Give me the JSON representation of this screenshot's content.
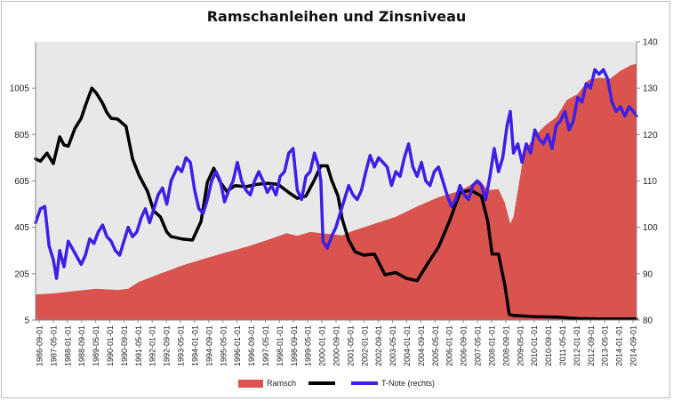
{
  "chart_data": {
    "type": "line",
    "title": "Ramschanleihen und Zinsniveau",
    "x_labels": [
      "1986-09-01",
      "1987-05-01",
      "1988-01-01",
      "1988-09-01",
      "1989-05-01",
      "1990-01-01",
      "1990-09-01",
      "1991-05-01",
      "1992-01-01",
      "1992-09-01",
      "1993-05-01",
      "1994-01-01",
      "1994-09-01",
      "1995-05-01",
      "1996-01-01",
      "1996-09-01",
      "1997-05-01",
      "1998-01-01",
      "1998-09-01",
      "1999-05-01",
      "2000-01-01",
      "2000-09-01",
      "2001-05-01",
      "2002-01-01",
      "2002-09-01",
      "2003-05-01",
      "2004-01-01",
      "2004-09-01",
      "2005-05-01",
      "2006-01-01",
      "2006-09-01",
      "2007-05-01",
      "2008-01-01",
      "2008-09-01",
      "2009-05-01",
      "2010-01-01",
      "2010-09-01",
      "2011-05-01",
      "2012-01-01",
      "2012-09-01",
      "2013-05-01",
      "2014-01-01",
      "2014-09-01"
    ],
    "y_left": {
      "ticks": [
        5,
        205,
        405,
        605,
        805,
        1005
      ],
      "range": [
        5,
        1205
      ]
    },
    "y_right": {
      "label": "",
      "ticks": [
        80,
        90,
        100,
        110,
        120,
        130,
        140
      ],
      "range": [
        80,
        140
      ]
    },
    "series": [
      {
        "name": "Ramsch",
        "type": "area",
        "axis": "left",
        "color": "#d9534f",
        "points": [
          [
            1986.67,
            115
          ],
          [
            1987.5,
            120
          ],
          [
            1988.5,
            130
          ],
          [
            1989.5,
            140
          ],
          [
            1990.5,
            135
          ],
          [
            1991.0,
            140
          ],
          [
            1991.5,
            170
          ],
          [
            1992.5,
            205
          ],
          [
            1993.5,
            240
          ],
          [
            1994.5,
            268
          ],
          [
            1995.5,
            295
          ],
          [
            1996.5,
            320
          ],
          [
            1997.5,
            350
          ],
          [
            1998.4,
            380
          ],
          [
            1998.9,
            368
          ],
          [
            1999.5,
            385
          ],
          [
            2000.5,
            375
          ],
          [
            2001.0,
            370
          ],
          [
            2001.5,
            390
          ],
          [
            2002.5,
            420
          ],
          [
            2003.5,
            450
          ],
          [
            2004.5,
            495
          ],
          [
            2005.5,
            535
          ],
          [
            2006.5,
            562
          ],
          [
            2007.4,
            610
          ],
          [
            2007.8,
            565
          ],
          [
            2008.3,
            570
          ],
          [
            2008.6,
            510
          ],
          [
            2008.85,
            420
          ],
          [
            2009.0,
            450
          ],
          [
            2009.5,
            730
          ],
          [
            2010.0,
            800
          ],
          [
            2010.5,
            845
          ],
          [
            2011.0,
            880
          ],
          [
            2011.5,
            955
          ],
          [
            2012.0,
            980
          ],
          [
            2012.5,
            1040
          ],
          [
            2013.0,
            1050
          ],
          [
            2013.5,
            1045
          ],
          [
            2014.0,
            1080
          ],
          [
            2014.5,
            1105
          ],
          [
            2014.75,
            1110
          ]
        ]
      },
      {
        "name": "",
        "type": "line",
        "axis": "left",
        "color": "#000000",
        "points": [
          [
            1986.67,
            700
          ],
          [
            1986.9,
            690
          ],
          [
            1987.2,
            725
          ],
          [
            1987.5,
            680
          ],
          [
            1987.8,
            795
          ],
          [
            1988.0,
            760
          ],
          [
            1988.2,
            755
          ],
          [
            1988.5,
            830
          ],
          [
            1988.8,
            875
          ],
          [
            1989.0,
            930
          ],
          [
            1989.3,
            1005
          ],
          [
            1989.5,
            985
          ],
          [
            1989.8,
            940
          ],
          [
            1990.0,
            900
          ],
          [
            1990.2,
            875
          ],
          [
            1990.5,
            872
          ],
          [
            1990.9,
            840
          ],
          [
            1991.2,
            700
          ],
          [
            1991.5,
            630
          ],
          [
            1991.9,
            560
          ],
          [
            1992.2,
            475
          ],
          [
            1992.5,
            450
          ],
          [
            1992.8,
            385
          ],
          [
            1993.0,
            365
          ],
          [
            1993.5,
            355
          ],
          [
            1994.0,
            350
          ],
          [
            1994.4,
            430
          ],
          [
            1994.7,
            600
          ],
          [
            1995.0,
            660
          ],
          [
            1995.3,
            600
          ],
          [
            1995.6,
            560
          ],
          [
            1996.0,
            585
          ],
          [
            1996.5,
            580
          ],
          [
            1997.0,
            590
          ],
          [
            1997.5,
            595
          ],
          [
            1998.0,
            590
          ],
          [
            1998.5,
            555
          ],
          [
            1998.9,
            530
          ],
          [
            1999.3,
            540
          ],
          [
            1999.7,
            610
          ],
          [
            2000.0,
            670
          ],
          [
            2000.3,
            670
          ],
          [
            2000.5,
            610
          ],
          [
            2000.8,
            540
          ],
          [
            2001.0,
            440
          ],
          [
            2001.3,
            350
          ],
          [
            2001.6,
            300
          ],
          [
            2002.0,
            285
          ],
          [
            2002.5,
            290
          ],
          [
            2003.0,
            200
          ],
          [
            2003.5,
            210
          ],
          [
            2004.0,
            185
          ],
          [
            2004.5,
            175
          ],
          [
            2005.0,
            250
          ],
          [
            2005.5,
            320
          ],
          [
            2006.0,
            430
          ],
          [
            2006.5,
            555
          ],
          [
            2007.0,
            565
          ],
          [
            2007.5,
            540
          ],
          [
            2007.8,
            430
          ],
          [
            2008.0,
            290
          ],
          [
            2008.3,
            290
          ],
          [
            2008.6,
            155
          ],
          [
            2008.8,
            30
          ],
          [
            2009.0,
            25
          ],
          [
            2010.0,
            20
          ],
          [
            2011.0,
            18
          ],
          [
            2012.0,
            12
          ],
          [
            2013.0,
            10
          ],
          [
            2014.0,
            10
          ],
          [
            2014.75,
            10
          ]
        ]
      },
      {
        "name": "T-Note (rechts)",
        "type": "line",
        "axis": "right",
        "color": "#3d1fe6",
        "points": [
          [
            1986.67,
            101
          ],
          [
            1986.9,
            104
          ],
          [
            1987.1,
            104.5
          ],
          [
            1987.3,
            96
          ],
          [
            1987.5,
            93
          ],
          [
            1987.65,
            89
          ],
          [
            1987.8,
            95
          ],
          [
            1988.0,
            91.5
          ],
          [
            1988.2,
            97
          ],
          [
            1988.5,
            94.5
          ],
          [
            1988.8,
            92
          ],
          [
            1989.0,
            94
          ],
          [
            1989.2,
            97.5
          ],
          [
            1989.4,
            96.5
          ],
          [
            1989.6,
            99
          ],
          [
            1989.8,
            100.5
          ],
          [
            1990.0,
            98
          ],
          [
            1990.2,
            97
          ],
          [
            1990.4,
            95
          ],
          [
            1990.6,
            94
          ],
          [
            1990.8,
            97
          ],
          [
            1991.0,
            100
          ],
          [
            1991.2,
            98
          ],
          [
            1991.4,
            99
          ],
          [
            1991.6,
            102
          ],
          [
            1991.8,
            104
          ],
          [
            1992.0,
            101
          ],
          [
            1992.2,
            104
          ],
          [
            1992.4,
            107
          ],
          [
            1992.6,
            108.5
          ],
          [
            1992.8,
            105
          ],
          [
            1993.0,
            110
          ],
          [
            1993.3,
            113
          ],
          [
            1993.5,
            112
          ],
          [
            1993.7,
            115
          ],
          [
            1993.9,
            114
          ],
          [
            1994.1,
            108
          ],
          [
            1994.3,
            104
          ],
          [
            1994.5,
            103
          ],
          [
            1994.7,
            106
          ],
          [
            1994.9,
            110
          ],
          [
            1995.1,
            112
          ],
          [
            1995.3,
            110
          ],
          [
            1995.5,
            105.5
          ],
          [
            1995.7,
            108
          ],
          [
            1995.9,
            110
          ],
          [
            1996.1,
            114
          ],
          [
            1996.3,
            110
          ],
          [
            1996.5,
            108
          ],
          [
            1996.7,
            107
          ],
          [
            1996.9,
            110
          ],
          [
            1997.1,
            112
          ],
          [
            1997.3,
            110
          ],
          [
            1997.5,
            107.5
          ],
          [
            1997.7,
            109
          ],
          [
            1997.9,
            107
          ],
          [
            1998.1,
            111
          ],
          [
            1998.3,
            112
          ],
          [
            1998.5,
            116
          ],
          [
            1998.7,
            117
          ],
          [
            1998.9,
            108
          ],
          [
            1999.1,
            106
          ],
          [
            1999.3,
            111
          ],
          [
            1999.5,
            112
          ],
          [
            1999.7,
            116
          ],
          [
            1999.9,
            113
          ],
          [
            2000.0,
            110
          ],
          [
            2000.1,
            97
          ],
          [
            2000.3,
            95.5
          ],
          [
            2000.5,
            98
          ],
          [
            2000.7,
            100
          ],
          [
            2000.9,
            103
          ],
          [
            2001.1,
            106
          ],
          [
            2001.3,
            109
          ],
          [
            2001.5,
            107
          ],
          [
            2001.7,
            106
          ],
          [
            2001.9,
            108
          ],
          [
            2002.1,
            112
          ],
          [
            2002.3,
            115.5
          ],
          [
            2002.5,
            113
          ],
          [
            2002.7,
            115
          ],
          [
            2002.9,
            114
          ],
          [
            2003.1,
            113
          ],
          [
            2003.3,
            109
          ],
          [
            2003.5,
            112
          ],
          [
            2003.7,
            111
          ],
          [
            2003.9,
            115
          ],
          [
            2004.1,
            118
          ],
          [
            2004.3,
            113
          ],
          [
            2004.5,
            111
          ],
          [
            2004.7,
            114
          ],
          [
            2004.9,
            110
          ],
          [
            2005.1,
            109
          ],
          [
            2005.3,
            112
          ],
          [
            2005.5,
            113
          ],
          [
            2005.7,
            110
          ],
          [
            2005.9,
            107
          ],
          [
            2006.1,
            104.5
          ],
          [
            2006.3,
            106
          ],
          [
            2006.5,
            109
          ],
          [
            2006.7,
            107
          ],
          [
            2006.9,
            106
          ],
          [
            2007.1,
            109
          ],
          [
            2007.3,
            110
          ],
          [
            2007.5,
            109
          ],
          [
            2007.7,
            106
          ],
          [
            2007.9,
            111
          ],
          [
            2008.1,
            117
          ],
          [
            2008.3,
            112
          ],
          [
            2008.5,
            115
          ],
          [
            2008.7,
            122
          ],
          [
            2008.85,
            125
          ],
          [
            2009.0,
            116
          ],
          [
            2009.2,
            118
          ],
          [
            2009.4,
            114
          ],
          [
            2009.6,
            118
          ],
          [
            2009.8,
            116
          ],
          [
            2010.0,
            121
          ],
          [
            2010.2,
            119
          ],
          [
            2010.4,
            118
          ],
          [
            2010.6,
            120
          ],
          [
            2010.8,
            117
          ],
          [
            2011.0,
            122
          ],
          [
            2011.2,
            123
          ],
          [
            2011.4,
            125
          ],
          [
            2011.6,
            121
          ],
          [
            2011.8,
            123
          ],
          [
            2012.0,
            128
          ],
          [
            2012.2,
            127
          ],
          [
            2012.4,
            131
          ],
          [
            2012.6,
            130
          ],
          [
            2012.8,
            134
          ],
          [
            2013.0,
            133
          ],
          [
            2013.2,
            134
          ],
          [
            2013.4,
            132
          ],
          [
            2013.6,
            127
          ],
          [
            2013.8,
            125
          ],
          [
            2014.0,
            126
          ],
          [
            2014.2,
            124
          ],
          [
            2014.4,
            126
          ],
          [
            2014.6,
            125
          ],
          [
            2014.75,
            124
          ]
        ]
      }
    ],
    "legend_position": "bottom",
    "grid": false
  }
}
